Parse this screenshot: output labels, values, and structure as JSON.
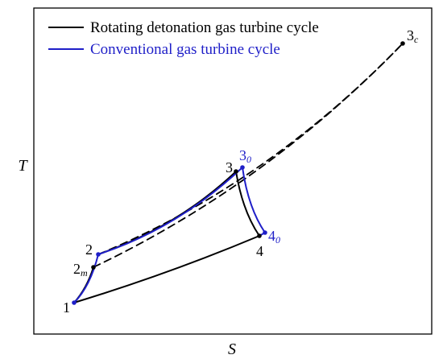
{
  "colors": {
    "rotating_detonation": "#000000",
    "conventional": "#1f1fc8",
    "frame": "#000000"
  },
  "axes": {
    "x_label": "S",
    "y_label": "T"
  },
  "legend": {
    "items": [
      {
        "label": "Rotating detonation gas turbine cycle",
        "color": "#000000"
      },
      {
        "label": "Conventional gas turbine cycle",
        "color": "#1f1fc8"
      }
    ]
  },
  "points": {
    "p1": {
      "main": "1"
    },
    "p2": {
      "main": "2"
    },
    "p2m": {
      "main": "2",
      "sub": "m"
    },
    "p3": {
      "main": "3"
    },
    "p30": {
      "main": "3",
      "sub": "0"
    },
    "p3c": {
      "main": "3",
      "sub": "c"
    },
    "p4": {
      "main": "4"
    },
    "p40": {
      "main": "4",
      "sub": "0"
    }
  }
}
